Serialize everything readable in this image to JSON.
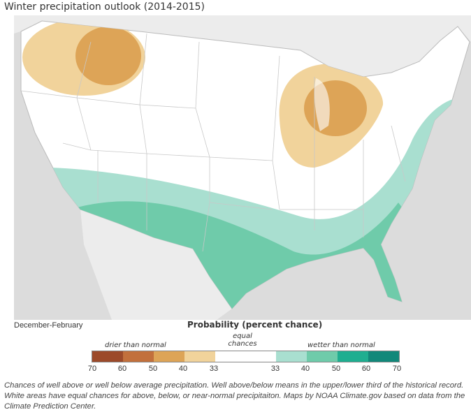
{
  "title": "Winter precipitation outlook (2014-2015)",
  "period": "December-February",
  "legend": {
    "title": "Probability (percent chance)",
    "drier": "drier than normal",
    "equal": "equal chances",
    "wetter": "wetter than normal",
    "ticks": [
      "70",
      "60",
      "50",
      "40",
      "33",
      "33",
      "40",
      "50",
      "60",
      "70"
    ],
    "colors": [
      "#9c4a2a",
      "#c2703c",
      "#dda457",
      "#f1d39b",
      "#ffffff",
      "#a9dfd0",
      "#6fcbaa",
      "#1fae90",
      "#12887a"
    ]
  },
  "caption": "Chances of well above or well below average precipitation. Well above/below means in the upper/lower third of the historical record. White areas have equal chances for above, below, or near-normal precipitaiton. Maps by NOAA Climate.gov based on data from the Climate Prediction Center."
}
